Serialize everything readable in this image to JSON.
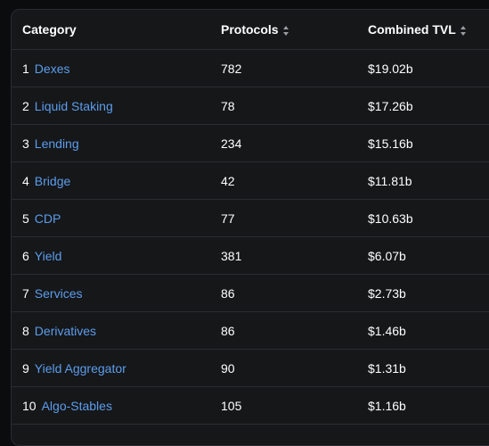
{
  "table": {
    "headers": {
      "category": "Category",
      "protocols": "Protocols",
      "tvl": "Combined TVL"
    },
    "rows": [
      {
        "rank": "1",
        "category": "Dexes",
        "protocols": "782",
        "tvl": "$19.02b"
      },
      {
        "rank": "2",
        "category": "Liquid Staking",
        "protocols": "78",
        "tvl": "$17.26b"
      },
      {
        "rank": "3",
        "category": "Lending",
        "protocols": "234",
        "tvl": "$15.16b"
      },
      {
        "rank": "4",
        "category": "Bridge",
        "protocols": "42",
        "tvl": "$11.81b"
      },
      {
        "rank": "5",
        "category": "CDP",
        "protocols": "77",
        "tvl": "$10.63b"
      },
      {
        "rank": "6",
        "category": "Yield",
        "protocols": "381",
        "tvl": "$6.07b"
      },
      {
        "rank": "7",
        "category": "Services",
        "protocols": "86",
        "tvl": "$2.73b"
      },
      {
        "rank": "8",
        "category": "Derivatives",
        "protocols": "86",
        "tvl": "$1.46b"
      },
      {
        "rank": "9",
        "category": "Yield Aggregator",
        "protocols": "90",
        "tvl": "$1.31b"
      },
      {
        "rank": "10",
        "category": "Algo-Stables",
        "protocols": "105",
        "tvl": "$1.16b"
      }
    ]
  },
  "colors": {
    "link": "#5b9ded",
    "background": "#161719",
    "border": "#2a2c30"
  },
  "icons": {
    "sort": "sort-icon"
  }
}
